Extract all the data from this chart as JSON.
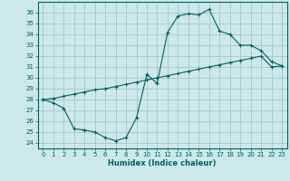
{
  "xlabel": "Humidex (Indice chaleur)",
  "ylabel": "",
  "xlim": [
    -0.5,
    23.5
  ],
  "ylim": [
    23.5,
    37.0
  ],
  "yticks": [
    24,
    25,
    26,
    27,
    28,
    29,
    30,
    31,
    32,
    33,
    34,
    35,
    36
  ],
  "xticks": [
    0,
    1,
    2,
    3,
    4,
    5,
    6,
    7,
    8,
    9,
    10,
    11,
    12,
    13,
    14,
    15,
    16,
    17,
    18,
    19,
    20,
    21,
    22,
    23
  ],
  "background_color": "#cde8e8",
  "grid_color": "#a0c8c8",
  "line_color": "#006060",
  "line1_x": [
    0,
    1,
    2,
    3,
    4,
    5,
    6,
    7,
    8,
    9,
    10,
    11,
    12,
    13,
    14,
    15,
    16,
    17,
    18,
    19,
    20,
    21,
    22,
    23
  ],
  "line1_y": [
    28.0,
    27.7,
    27.2,
    25.3,
    25.2,
    25.0,
    24.5,
    24.2,
    24.5,
    26.3,
    30.3,
    29.5,
    34.2,
    35.7,
    35.9,
    35.8,
    36.3,
    34.3,
    34.0,
    33.0,
    33.0,
    32.5,
    31.5,
    31.1
  ],
  "line2_x": [
    0,
    1,
    2,
    3,
    4,
    5,
    6,
    7,
    8,
    9,
    10,
    11,
    12,
    13,
    14,
    15,
    16,
    17,
    18,
    19,
    20,
    21,
    22,
    23
  ],
  "line2_y": [
    28.0,
    28.1,
    28.3,
    28.5,
    28.7,
    28.9,
    29.0,
    29.2,
    29.4,
    29.6,
    29.8,
    30.0,
    30.2,
    30.4,
    30.6,
    30.8,
    31.0,
    31.2,
    31.4,
    31.6,
    31.8,
    32.0,
    31.0,
    31.1
  ]
}
